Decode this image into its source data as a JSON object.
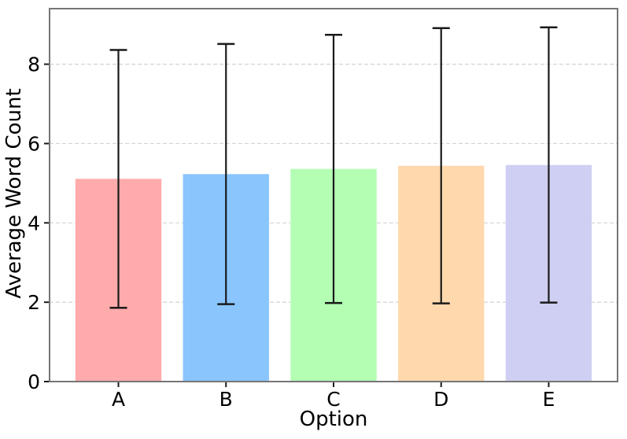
{
  "figure": {
    "background": "#ffffff"
  },
  "chart_data": {
    "type": "bar",
    "title": "",
    "xlabel": "Option",
    "ylabel": "Average Word Count",
    "categories": [
      "A",
      "B",
      "C",
      "D",
      "E"
    ],
    "values": [
      5.11,
      5.23,
      5.36,
      5.44,
      5.46
    ],
    "error_bars": {
      "type": "symmetric",
      "values": [
        3.25,
        3.28,
        3.38,
        3.47,
        3.47
      ],
      "capped": true,
      "color": "#1a1a1a"
    },
    "bar_colors": [
      "#ffabab",
      "#8ac5fd",
      "#b3feb3",
      "#ffd8ae",
      "#cfcff3"
    ],
    "yticks": [
      0,
      2,
      4,
      6,
      8
    ],
    "ytick_labels": [
      "0",
      "2",
      "4",
      "6",
      "8"
    ],
    "xtick_labels": [
      "A",
      "B",
      "C",
      "D",
      "E"
    ],
    "ylim": [
      0,
      9.4
    ],
    "xlim": [
      -0.64,
      4.64
    ],
    "bar_width": 0.8,
    "grid": {
      "axis": "y",
      "style": "dashed",
      "color": "#d2d2d2"
    },
    "legend": "none",
    "spine_color": "#767676",
    "tick_color": "#1a1a1a",
    "text_color": "#000000"
  }
}
